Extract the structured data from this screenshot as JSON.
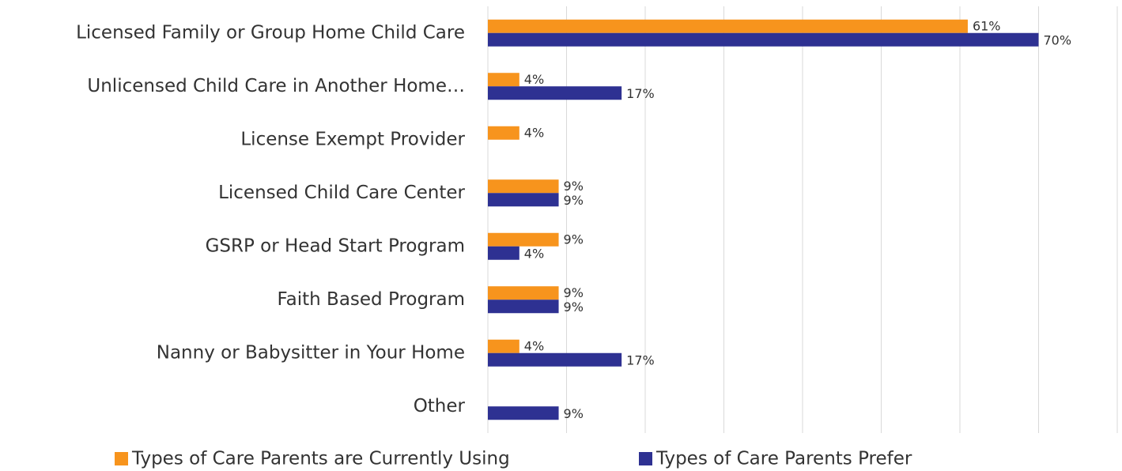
{
  "chart_data": {
    "type": "barh",
    "categories": [
      "Licensed Family or Group Home Child Care",
      "Unlicensed Child Care in Another Home…",
      "License Exempt Provider",
      "Licensed Child Care Center",
      "GSRP or Head Start Program",
      "Faith Based Program",
      "Nanny or Babysitter in Your Home",
      "Other"
    ],
    "series": [
      {
        "name": "Types of Care Parents are Currently Using",
        "color": "#f7941d",
        "values": [
          61,
          4,
          4,
          9,
          9,
          9,
          4,
          null
        ],
        "value_labels": [
          "61%",
          "4%",
          "4%",
          "9%",
          "9%",
          "9%",
          "4%",
          null
        ]
      },
      {
        "name": "Types of Care Parents Prefer",
        "color": "#2e3192",
        "values": [
          70,
          17,
          null,
          9,
          4,
          9,
          17,
          9
        ],
        "value_labels": [
          "70%",
          "17%",
          null,
          "9%",
          "4%",
          "9%",
          "17%",
          "9%"
        ]
      }
    ],
    "xlim": [
      0,
      80
    ],
    "xticks": [
      0,
      10,
      20,
      30,
      40,
      50,
      60,
      70,
      80
    ],
    "grid": true,
    "legend": "bottom"
  }
}
